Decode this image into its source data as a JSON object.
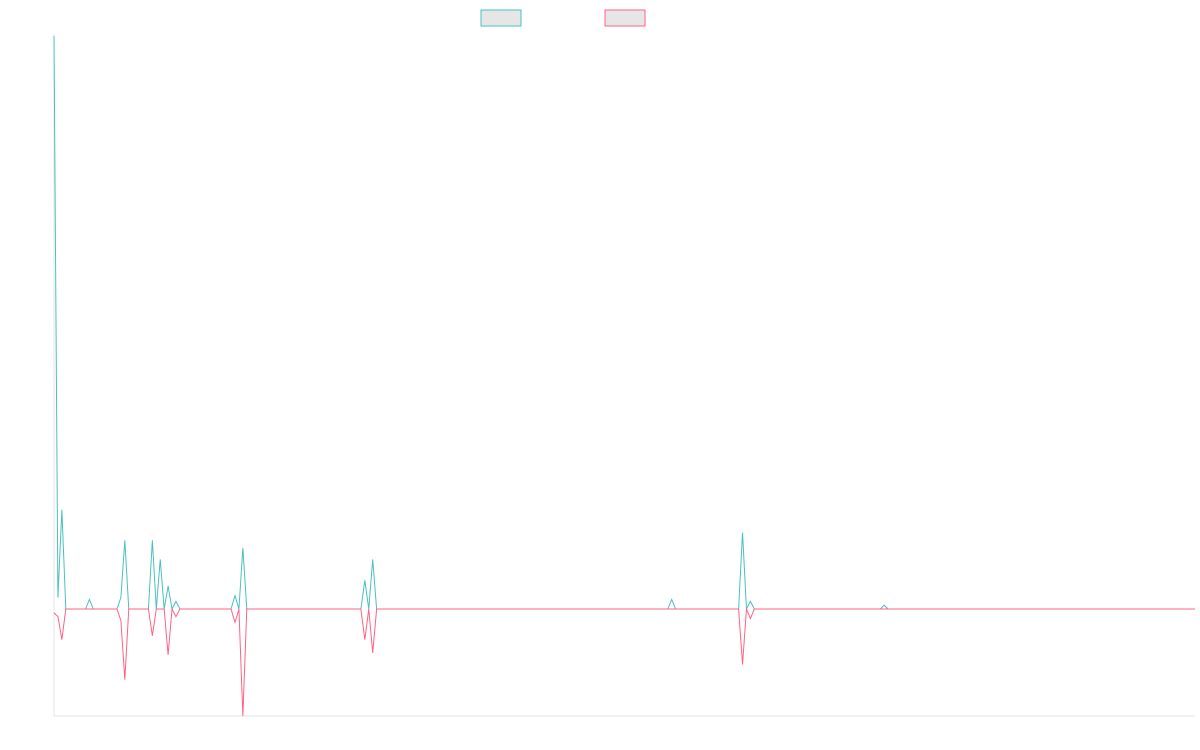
{
  "chart_data": {
    "type": "line",
    "title": "",
    "xlabel": "",
    "ylabel": "",
    "legend": {
      "position": "top-center"
    },
    "grid": false,
    "x_count": 291,
    "ylim": [
      -28,
      150
    ],
    "series": [
      {
        "name": "",
        "color": "#4bc0c0",
        "fill": "#e6e6e6",
        "points": [
          [
            0,
            150
          ],
          [
            1,
            3
          ],
          [
            2,
            26
          ],
          [
            3,
            0
          ],
          [
            9,
            2.5
          ],
          [
            10,
            0
          ],
          [
            16,
            0
          ],
          [
            17,
            3
          ],
          [
            18,
            18
          ],
          [
            19,
            0
          ],
          [
            24,
            0
          ],
          [
            25,
            18
          ],
          [
            26,
            0
          ],
          [
            27,
            13
          ],
          [
            28,
            0
          ],
          [
            29,
            6
          ],
          [
            30,
            0
          ],
          [
            31,
            2
          ],
          [
            32,
            0
          ],
          [
            45,
            0
          ],
          [
            46,
            3.5
          ],
          [
            47,
            0
          ],
          [
            48,
            16
          ],
          [
            49,
            0
          ],
          [
            78,
            0
          ],
          [
            79,
            7.5
          ],
          [
            80,
            0
          ],
          [
            81,
            13
          ],
          [
            82,
            0
          ],
          [
            156,
            0
          ],
          [
            157,
            2.5
          ],
          [
            158,
            0
          ],
          [
            174,
            0
          ],
          [
            175,
            20
          ],
          [
            176,
            0
          ],
          [
            177,
            2
          ],
          [
            178,
            0
          ],
          [
            210,
            0
          ],
          [
            211,
            1
          ],
          [
            212,
            0
          ]
        ]
      },
      {
        "name": "",
        "color": "#ff6384",
        "fill": "#e6e6e6",
        "points": [
          [
            0,
            -1
          ],
          [
            1,
            -2
          ],
          [
            2,
            -8
          ],
          [
            3,
            0
          ],
          [
            16,
            0
          ],
          [
            17,
            -3
          ],
          [
            18,
            -18.5
          ],
          [
            19,
            0
          ],
          [
            24,
            0
          ],
          [
            25,
            -7
          ],
          [
            26,
            0
          ],
          [
            28,
            0
          ],
          [
            29,
            -12
          ],
          [
            30,
            0
          ],
          [
            31,
            -2
          ],
          [
            32,
            0
          ],
          [
            45,
            0
          ],
          [
            46,
            -3.5
          ],
          [
            47,
            0
          ],
          [
            48,
            -28
          ],
          [
            49,
            0
          ],
          [
            78,
            0
          ],
          [
            79,
            -8
          ],
          [
            80,
            0
          ],
          [
            81,
            -11.5
          ],
          [
            82,
            0
          ],
          [
            174,
            0
          ],
          [
            175,
            -14.5
          ],
          [
            176,
            0
          ],
          [
            177,
            -2.5
          ],
          [
            178,
            0
          ]
        ]
      }
    ]
  }
}
